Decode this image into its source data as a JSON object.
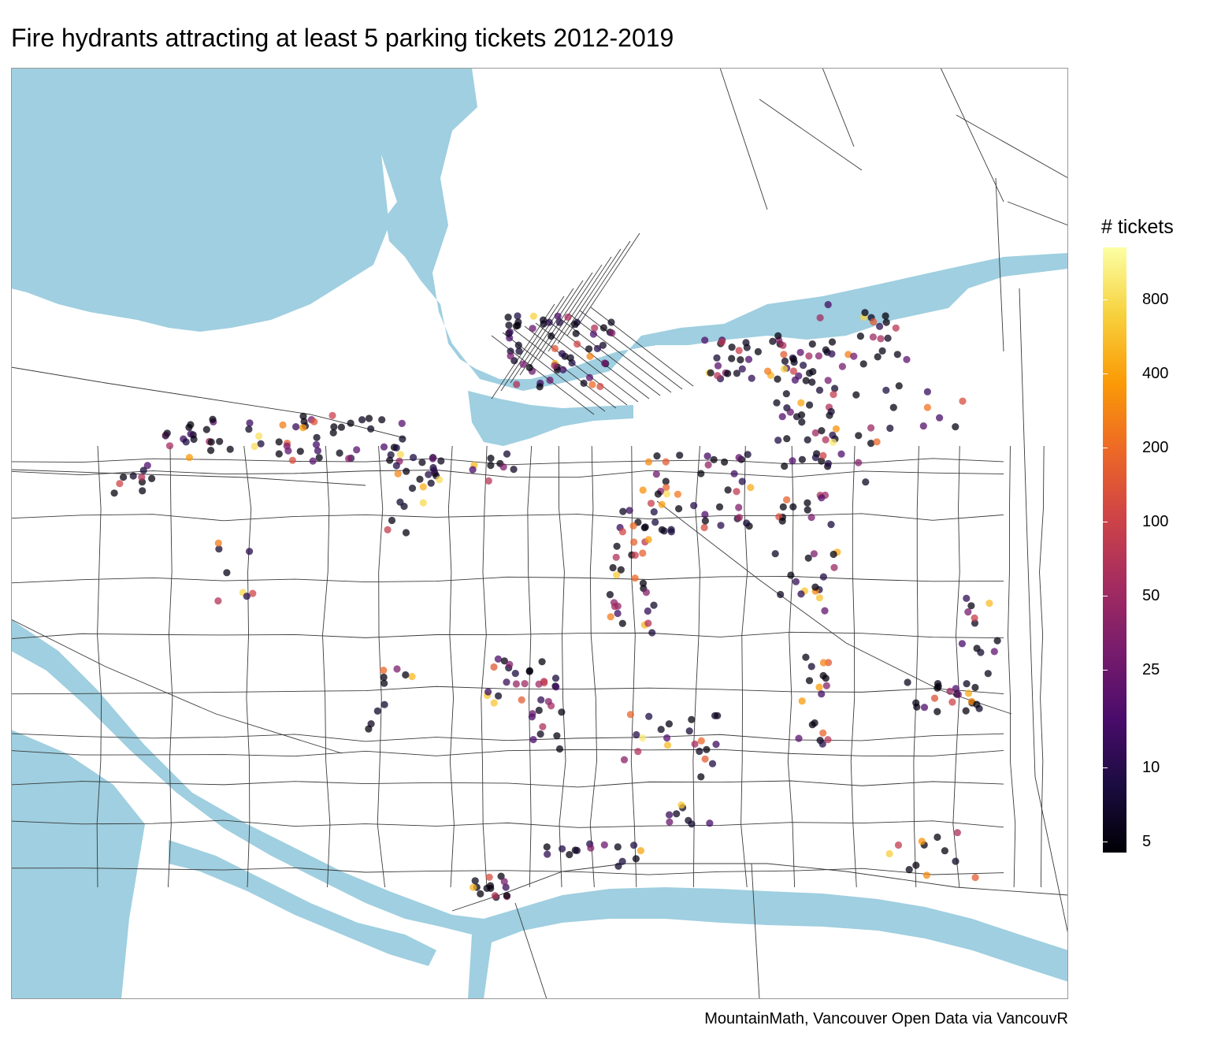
{
  "title": "Fire hydrants attracting at least 5 parking tickets 2012-2019",
  "caption": "MountainMath, Vancouver Open Data via VancouvR",
  "colors": {
    "water": "#9fcfe0",
    "land": "#ffffff",
    "roads": "#3a3a3a",
    "frame": "#999999",
    "point_opacity": 0.75
  },
  "legend": {
    "title": "# tickets",
    "scale": "log",
    "min": 4.5,
    "max": 1300,
    "palette": "inferno",
    "ticks": [
      {
        "label": "800",
        "value": 800
      },
      {
        "label": "400",
        "value": 400
      },
      {
        "label": "200",
        "value": 200
      },
      {
        "label": "100",
        "value": 100
      },
      {
        "label": "50",
        "value": 50
      },
      {
        "label": "25",
        "value": 25
      },
      {
        "label": "10",
        "value": 10
      },
      {
        "label": "5",
        "value": 5
      }
    ]
  }
}
